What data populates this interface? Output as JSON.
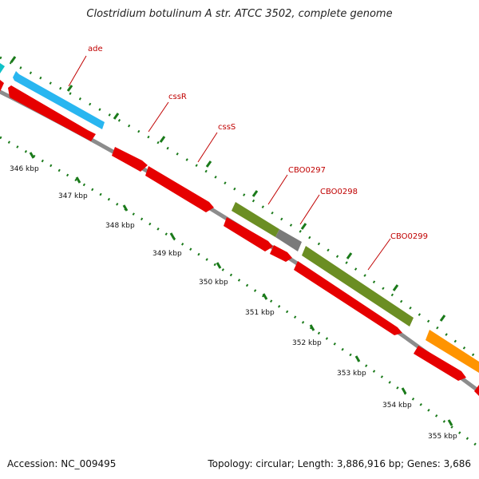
{
  "header": {
    "title": "Clostridium botulinum A str. ATCC 3502, complete genome"
  },
  "footer": {
    "accession": "Accession: NC_009495",
    "stats": "Topology: circular; Length: 3,886,916 bp; Genes: 3,686"
  },
  "colors": {
    "cds": "#e60000",
    "cds_cyan": "#29b6f0",
    "cds_olive": "#6b8e23",
    "cds_grey": "#7a7a7a",
    "cds_orange": "#ff9400",
    "tick": "#1a7a1a",
    "backbone": "#8c8c8c",
    "label": "#c00000"
  },
  "gene_labels": [
    "ade",
    "cssR",
    "cssS",
    "CBO0297",
    "CBO0298",
    "CBO0299"
  ],
  "kbp_ticks": [
    "346 kbp",
    "347 kbp",
    "348 kbp",
    "349 kbp",
    "350 kbp",
    "351 kbp",
    "352 kbp",
    "353 kbp",
    "354 kbp",
    "355 kbp"
  ]
}
